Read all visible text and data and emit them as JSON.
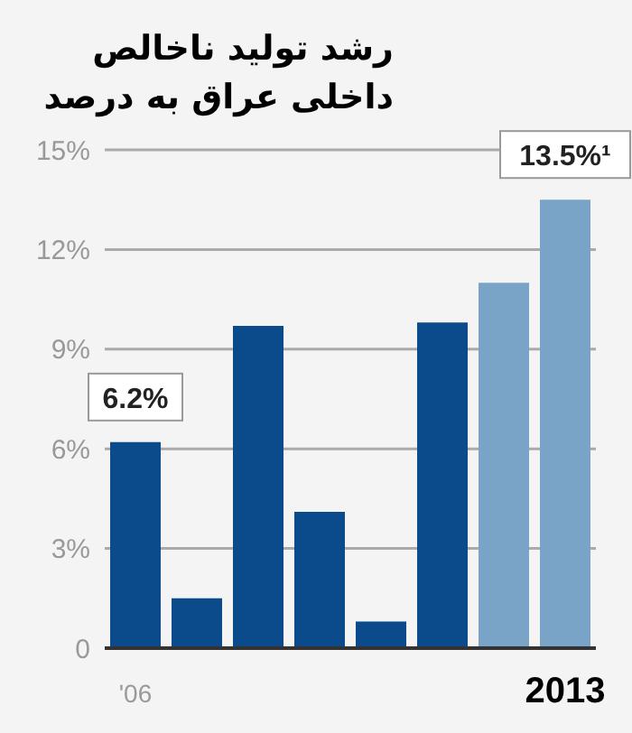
{
  "chart_data": {
    "type": "bar",
    "title": "رشد تولید ناخالص داخلی عراق به درصد",
    "categories": [
      "'06",
      null,
      null,
      null,
      null,
      null,
      null,
      "2013"
    ],
    "values": [
      6.2,
      1.5,
      9.7,
      4.1,
      0.8,
      9.8,
      11.0,
      13.5
    ],
    "colors": [
      "#0b4a8b",
      "#0b4a8b",
      "#0b4a8b",
      "#0b4a8b",
      "#0b4a8b",
      "#0b4a8b",
      "#7aa3c8",
      "#7aa3c8"
    ],
    "value_labels": [
      "6.2%",
      null,
      null,
      null,
      null,
      null,
      null,
      "13.5%¹"
    ],
    "ylim": [
      0,
      15
    ],
    "yticks": [
      0,
      {
        "value": 3,
        "label": "3%"
      },
      {
        "value": 6,
        "label": "6%"
      },
      {
        "value": 9,
        "label": "9%"
      },
      {
        "value": 12,
        "label": "12%"
      },
      {
        "value": 15,
        "label": "15%"
      }
    ],
    "grid": "y"
  }
}
